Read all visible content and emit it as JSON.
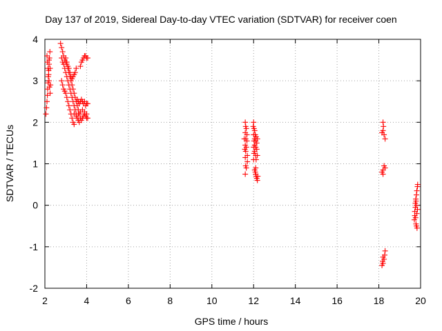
{
  "chart_data": {
    "type": "scatter",
    "title": "Day 137 of 2019, Sidereal Day-to-day VTEC variation (SDTVAR) for receiver coen",
    "xlabel": "GPS time / hours",
    "ylabel": "SDTVAR / TECUs",
    "xlim": [
      2,
      20
    ],
    "ylim": [
      -2,
      4
    ],
    "xticks": [
      "2",
      "4",
      "6",
      "8",
      "10",
      "12",
      "14",
      "16",
      "18",
      "20"
    ],
    "yticks": [
      "-2",
      "-1",
      "0",
      "1",
      "2",
      "3",
      "4"
    ],
    "grid": true,
    "marker": "plus",
    "color": "#ff0000",
    "series": [
      {
        "name": "SDTVAR",
        "points": [
          [
            2.05,
            2.2
          ],
          [
            2.08,
            2.35
          ],
          [
            2.1,
            2.5
          ],
          [
            2.12,
            2.65
          ],
          [
            2.13,
            2.8
          ],
          [
            2.15,
            2.95
          ],
          [
            2.16,
            3.1
          ],
          [
            2.18,
            3.25
          ],
          [
            2.2,
            3.4
          ],
          [
            2.22,
            3.55
          ],
          [
            2.24,
            3.7
          ],
          [
            2.1,
            3.6
          ],
          [
            2.12,
            3.45
          ],
          [
            2.15,
            3.3
          ],
          [
            2.18,
            3.15
          ],
          [
            2.2,
            3.0
          ],
          [
            2.22,
            2.85
          ],
          [
            2.25,
            2.7
          ],
          [
            2.27,
            2.9
          ],
          [
            2.2,
            3.5
          ],
          [
            2.25,
            3.3
          ],
          [
            2.75,
            3.9
          ],
          [
            2.8,
            3.8
          ],
          [
            2.85,
            3.7
          ],
          [
            2.9,
            3.6
          ],
          [
            2.95,
            3.5
          ],
          [
            3.0,
            3.45
          ],
          [
            3.05,
            3.4
          ],
          [
            3.1,
            3.3
          ],
          [
            3.15,
            3.2
          ],
          [
            3.2,
            3.1
          ],
          [
            3.25,
            3.0
          ],
          [
            3.3,
            2.9
          ],
          [
            3.35,
            2.8
          ],
          [
            3.4,
            2.7
          ],
          [
            3.45,
            2.6
          ],
          [
            3.5,
            2.5
          ],
          [
            3.55,
            2.4
          ],
          [
            3.6,
            2.3
          ],
          [
            3.65,
            2.2
          ],
          [
            3.7,
            2.1
          ],
          [
            3.75,
            2.05
          ],
          [
            3.8,
            2.1
          ],
          [
            3.85,
            2.15
          ],
          [
            3.9,
            2.2
          ],
          [
            3.95,
            2.15
          ],
          [
            4.0,
            2.2
          ],
          [
            2.8,
            3.55
          ],
          [
            2.85,
            3.45
          ],
          [
            2.9,
            3.4
          ],
          [
            2.95,
            3.3
          ],
          [
            3.0,
            3.2
          ],
          [
            3.05,
            3.1
          ],
          [
            3.1,
            3.0
          ],
          [
            3.15,
            2.9
          ],
          [
            3.2,
            2.8
          ],
          [
            3.25,
            2.7
          ],
          [
            3.3,
            2.6
          ],
          [
            3.35,
            2.5
          ],
          [
            3.4,
            2.4
          ],
          [
            3.45,
            2.3
          ],
          [
            3.5,
            2.2
          ],
          [
            3.55,
            2.1
          ],
          [
            3.6,
            2.05
          ],
          [
            3.65,
            2.0
          ],
          [
            2.8,
            3.0
          ],
          [
            2.85,
            2.9
          ],
          [
            2.9,
            2.8
          ],
          [
            2.95,
            2.75
          ],
          [
            3.0,
            2.7
          ],
          [
            3.05,
            2.6
          ],
          [
            3.1,
            2.5
          ],
          [
            3.15,
            2.4
          ],
          [
            3.2,
            2.3
          ],
          [
            3.25,
            2.2
          ],
          [
            3.3,
            2.1
          ],
          [
            3.35,
            2.0
          ],
          [
            3.4,
            1.95
          ],
          [
            3.0,
            3.55
          ],
          [
            3.05,
            3.45
          ],
          [
            3.1,
            3.35
          ],
          [
            3.15,
            3.3
          ],
          [
            3.2,
            3.2
          ],
          [
            3.25,
            3.1
          ],
          [
            3.3,
            3.05
          ],
          [
            3.35,
            3.1
          ],
          [
            3.4,
            3.15
          ],
          [
            3.45,
            3.2
          ],
          [
            3.5,
            3.3
          ],
          [
            3.55,
            2.55
          ],
          [
            3.6,
            2.5
          ],
          [
            3.65,
            2.45
          ],
          [
            3.7,
            2.5
          ],
          [
            3.75,
            2.55
          ],
          [
            3.8,
            2.5
          ],
          [
            3.85,
            2.45
          ],
          [
            3.9,
            2.5
          ],
          [
            3.95,
            2.4
          ],
          [
            4.0,
            2.45
          ],
          [
            4.05,
            2.45
          ],
          [
            3.4,
            2.2
          ],
          [
            3.5,
            2.15
          ],
          [
            3.6,
            2.2
          ],
          [
            3.7,
            2.25
          ],
          [
            3.8,
            2.3
          ],
          [
            3.9,
            2.25
          ],
          [
            4.0,
            2.1
          ],
          [
            4.05,
            2.1
          ],
          [
            3.8,
            3.5
          ],
          [
            3.85,
            3.55
          ],
          [
            3.9,
            3.6
          ],
          [
            3.95,
            3.6
          ],
          [
            4.0,
            3.55
          ],
          [
            4.05,
            3.55
          ],
          [
            3.7,
            3.35
          ],
          [
            3.75,
            3.45
          ],
          [
            11.6,
            0.75
          ],
          [
            11.62,
            0.95
          ],
          [
            11.6,
            1.15
          ],
          [
            11.62,
            1.3
          ],
          [
            11.6,
            1.45
          ],
          [
            11.62,
            1.6
          ],
          [
            11.6,
            1.75
          ],
          [
            11.62,
            1.9
          ],
          [
            11.6,
            2.0
          ],
          [
            11.65,
            1.85
          ],
          [
            11.68,
            1.7
          ],
          [
            11.68,
            1.55
          ],
          [
            11.65,
            1.4
          ],
          [
            11.7,
            1.2
          ],
          [
            11.7,
            1.05
          ],
          [
            11.65,
            0.9
          ],
          [
            11.58,
            1.35
          ],
          [
            11.55,
            1.6
          ],
          [
            11.98,
            1.9
          ],
          [
            12.0,
            2.0
          ],
          [
            12.02,
            1.85
          ],
          [
            12.0,
            1.7
          ],
          [
            12.02,
            1.55
          ],
          [
            12.0,
            1.4
          ],
          [
            12.02,
            1.25
          ],
          [
            12.0,
            1.1
          ],
          [
            12.05,
            1.8
          ],
          [
            12.05,
            1.6
          ],
          [
            12.05,
            1.45
          ],
          [
            12.05,
            1.3
          ],
          [
            12.08,
            1.7
          ],
          [
            12.1,
            1.55
          ],
          [
            12.1,
            1.4
          ],
          [
            12.1,
            1.2
          ],
          [
            12.12,
            1.65
          ],
          [
            12.12,
            1.1
          ],
          [
            12.15,
            1.5
          ],
          [
            12.15,
            1.35
          ],
          [
            12.18,
            1.6
          ],
          [
            12.18,
            1.2
          ],
          [
            12.05,
            0.85
          ],
          [
            12.08,
            0.8
          ],
          [
            12.1,
            0.75
          ],
          [
            12.12,
            0.7
          ],
          [
            12.15,
            0.65
          ],
          [
            12.18,
            0.6
          ],
          [
            12.2,
            0.7
          ],
          [
            12.1,
            0.9
          ],
          [
            18.15,
            1.75
          ],
          [
            18.2,
            1.8
          ],
          [
            18.22,
            1.9
          ],
          [
            18.25,
            1.7
          ],
          [
            18.3,
            1.6
          ],
          [
            18.2,
            2.0
          ],
          [
            18.15,
            0.8
          ],
          [
            18.2,
            0.85
          ],
          [
            18.25,
            0.95
          ],
          [
            18.3,
            0.9
          ],
          [
            18.2,
            0.75
          ],
          [
            18.15,
            -1.45
          ],
          [
            18.18,
            -1.35
          ],
          [
            18.2,
            -1.25
          ],
          [
            18.25,
            -1.3
          ],
          [
            18.28,
            -1.2
          ],
          [
            18.3,
            -1.1
          ],
          [
            18.2,
            -1.4
          ],
          [
            19.7,
            -0.35
          ],
          [
            19.72,
            -0.25
          ],
          [
            19.72,
            -0.15
          ],
          [
            19.75,
            -0.05
          ],
          [
            19.75,
            0.05
          ],
          [
            19.77,
            0.15
          ],
          [
            19.78,
            -0.45
          ],
          [
            19.8,
            -0.5
          ],
          [
            19.8,
            0.25
          ],
          [
            19.82,
            0.35
          ],
          [
            19.82,
            -0.2
          ],
          [
            19.85,
            0.45
          ],
          [
            19.85,
            -0.1
          ],
          [
            19.8,
            0.0
          ],
          [
            19.78,
            0.1
          ],
          [
            19.76,
            -0.3
          ],
          [
            19.83,
            -0.55
          ],
          [
            19.86,
            0.5
          ]
        ]
      }
    ]
  }
}
